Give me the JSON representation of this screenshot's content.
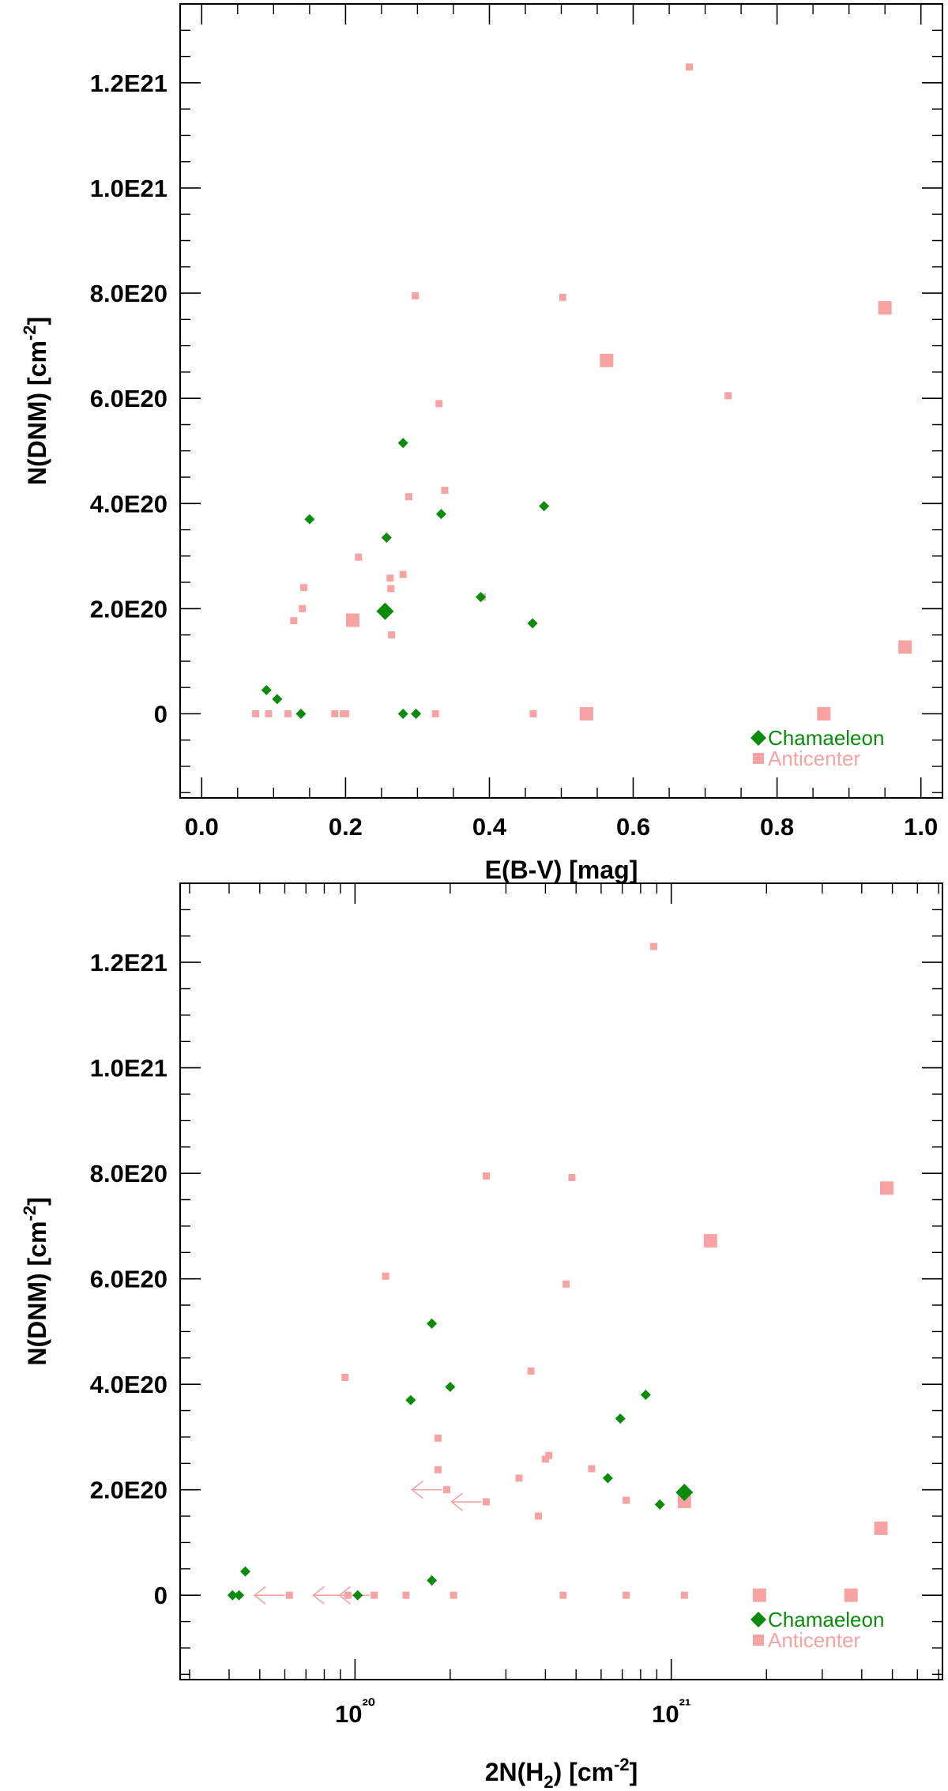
{
  "chart_data": [
    {
      "type": "scatter",
      "xlabel": "E(B-V) [mag]",
      "ylabel": "N(DNM) [cm⁻²]",
      "xlim": [
        -0.03,
        1.03
      ],
      "ylim": [
        -1.6e+20,
        1.35e+21
      ],
      "x_ticks": [
        0.0,
        0.2,
        0.4,
        0.6,
        0.8,
        1.0
      ],
      "x_tick_labels": [
        "0.0",
        "0.2",
        "0.4",
        "0.6",
        "0.8",
        "1.0"
      ],
      "y_ticks": [
        0,
        2e+20,
        4e+20,
        6e+20,
        8e+20,
        1e+21,
        1.2e+21
      ],
      "y_tick_labels": [
        "0",
        "2.0E20",
        "4.0E20",
        "6.0E20",
        "8.0E20",
        "1.0E21",
        "1.2E21"
      ],
      "legend_position": "bottom-right",
      "series": [
        {
          "name": "Chamaeleon",
          "color": "#0a8c0a",
          "marker": "diamond",
          "points": [
            {
              "x": 0.09,
              "y": 4.5e+19
            },
            {
              "x": 0.105,
              "y": 2.8e+19
            },
            {
              "x": 0.138,
              "y": 0
            },
            {
              "x": 0.15,
              "y": 3.7e+20
            },
            {
              "x": 0.255,
              "y": 1.95e+20,
              "big": true
            },
            {
              "x": 0.257,
              "y": 3.35e+20
            },
            {
              "x": 0.28,
              "y": 5.15e+20
            },
            {
              "x": 0.28,
              "y": 0
            },
            {
              "x": 0.298,
              "y": 0
            },
            {
              "x": 0.333,
              "y": 3.8e+20
            },
            {
              "x": 0.388,
              "y": 2.22e+20
            },
            {
              "x": 0.46,
              "y": 1.72e+20
            },
            {
              "x": 0.476,
              "y": 3.95e+20
            }
          ]
        },
        {
          "name": "Anticenter",
          "color": "#f7a3a3",
          "marker": "square",
          "points": [
            {
              "x": 0.075,
              "y": 0
            },
            {
              "x": 0.093,
              "y": 0
            },
            {
              "x": 0.12,
              "y": 0
            },
            {
              "x": 0.128,
              "y": 1.77e+20
            },
            {
              "x": 0.14,
              "y": 2e+20
            },
            {
              "x": 0.142,
              "y": 2.4e+20
            },
            {
              "x": 0.185,
              "y": 0
            },
            {
              "x": 0.197,
              "y": 0
            },
            {
              "x": 0.2,
              "y": 0
            },
            {
              "x": 0.21,
              "y": 1.78e+20,
              "big": true
            },
            {
              "x": 0.218,
              "y": 2.98e+20
            },
            {
              "x": 0.262,
              "y": 2.58e+20
            },
            {
              "x": 0.263,
              "y": 2.38e+20
            },
            {
              "x": 0.264,
              "y": 1.5e+20
            },
            {
              "x": 0.28,
              "y": 2.65e+20
            },
            {
              "x": 0.288,
              "y": 4.13e+20
            },
            {
              "x": 0.297,
              "y": 7.95e+20
            },
            {
              "x": 0.325,
              "y": 0
            },
            {
              "x": 0.33,
              "y": 5.9e+20
            },
            {
              "x": 0.338,
              "y": 4.25e+20
            },
            {
              "x": 0.39,
              "y": 2.22e+20
            },
            {
              "x": 0.461,
              "y": 0
            },
            {
              "x": 0.502,
              "y": 7.92e+20
            },
            {
              "x": 0.535,
              "y": 0,
              "big": true
            },
            {
              "x": 0.563,
              "y": 6.72e+20,
              "big": true
            },
            {
              "x": 0.678,
              "y": 1.23e+21
            },
            {
              "x": 0.732,
              "y": 6.05e+20
            },
            {
              "x": 0.865,
              "y": 0,
              "big": true
            },
            {
              "x": 0.95,
              "y": 7.72e+20,
              "big": true
            },
            {
              "x": 0.978,
              "y": 1.27e+20,
              "big": true
            }
          ]
        }
      ]
    },
    {
      "type": "scatter",
      "xlabel": "2N(H₂) [cm⁻²]",
      "ylabel": "N(DNM) [cm⁻²]",
      "xscale": "log",
      "xlim": [
        2.8e+19,
        7.2e+21
      ],
      "ylim": [
        -1.6e+20,
        1.35e+21
      ],
      "x_ticks": [
        1e+20,
        1e+21
      ],
      "x_tick_labels": [
        "10²⁰",
        "10²¹"
      ],
      "y_ticks": [
        0,
        2e+20,
        4e+20,
        6e+20,
        8e+20,
        1e+21,
        1.2e+21
      ],
      "y_tick_labels": [
        "0",
        "2.0E20",
        "4.0E20",
        "6.0E20",
        "8.0E20",
        "1.0E21",
        "1.2E21"
      ],
      "legend_position": "bottom-right",
      "series": [
        {
          "name": "Chamaeleon",
          "color": "#0a8c0a",
          "marker": "diamond",
          "points": [
            {
              "x": 4.1e+19,
              "y": 0
            },
            {
              "x": 4.3e+19,
              "y": 0
            },
            {
              "x": 4.5e+19,
              "y": 4.5e+19
            },
            {
              "x": 1.02e+20,
              "y": 0
            },
            {
              "x": 1.5e+20,
              "y": 3.7e+20
            },
            {
              "x": 1.75e+20,
              "y": 2.8e+19
            },
            {
              "x": 1.75e+20,
              "y": 5.15e+20
            },
            {
              "x": 2e+20,
              "y": 3.95e+20
            },
            {
              "x": 6.3e+20,
              "y": 2.22e+20
            },
            {
              "x": 6.9e+20,
              "y": 3.35e+20
            },
            {
              "x": 8.3e+20,
              "y": 3.8e+20
            },
            {
              "x": 9.2e+20,
              "y": 1.72e+20
            },
            {
              "x": 1.1e+21,
              "y": 1.95e+20,
              "big": true
            }
          ]
        },
        {
          "name": "Anticenter",
          "color": "#f7a3a3",
          "marker": "square",
          "points": [
            {
              "x": 6.2e+19,
              "y": 0,
              "upper_limit": true
            },
            {
              "x": 9.3e+19,
              "y": 4.13e+20
            },
            {
              "x": 9.5e+19,
              "y": 0,
              "upper_limit": true
            },
            {
              "x": 1.15e+20,
              "y": 0,
              "upper_limit": true
            },
            {
              "x": 1.25e+20,
              "y": 6.05e+20
            },
            {
              "x": 1.45e+20,
              "y": 0
            },
            {
              "x": 1.83e+20,
              "y": 2.98e+20
            },
            {
              "x": 1.83e+20,
              "y": 2.38e+20
            },
            {
              "x": 1.95e+20,
              "y": 2e+20,
              "upper_limit": true
            },
            {
              "x": 2.05e+20,
              "y": 0
            },
            {
              "x": 2.6e+20,
              "y": 7.95e+20
            },
            {
              "x": 2.6e+20,
              "y": 1.77e+20,
              "upper_limit": true
            },
            {
              "x": 3.3e+20,
              "y": 2.22e+20
            },
            {
              "x": 3.6e+20,
              "y": 4.25e+20
            },
            {
              "x": 3.8e+20,
              "y": 1.5e+20
            },
            {
              "x": 4e+20,
              "y": 2.58e+20
            },
            {
              "x": 4.1e+20,
              "y": 2.65e+20
            },
            {
              "x": 4.55e+20,
              "y": 0
            },
            {
              "x": 4.65e+20,
              "y": 5.9e+20
            },
            {
              "x": 4.85e+20,
              "y": 7.92e+20
            },
            {
              "x": 5.6e+20,
              "y": 2.4e+20
            },
            {
              "x": 7.2e+20,
              "y": 1.8e+20
            },
            {
              "x": 7.2e+20,
              "y": 0
            },
            {
              "x": 8.8e+20,
              "y": 1.23e+21
            },
            {
              "x": 1.1e+21,
              "y": 1.78e+20,
              "big": true
            },
            {
              "x": 1.1e+21,
              "y": 0
            },
            {
              "x": 1.33e+21,
              "y": 6.72e+20,
              "big": true
            },
            {
              "x": 1.9e+21,
              "y": 0,
              "big": true
            },
            {
              "x": 3.7e+21,
              "y": 0,
              "big": true
            },
            {
              "x": 4.6e+21,
              "y": 1.27e+20,
              "big": true
            },
            {
              "x": 4.8e+21,
              "y": 7.72e+20,
              "big": true
            }
          ]
        }
      ]
    }
  ]
}
